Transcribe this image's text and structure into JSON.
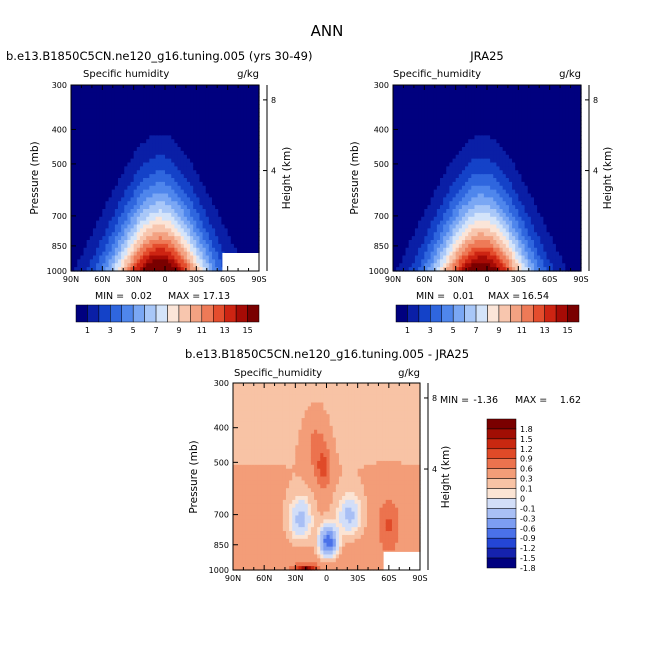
{
  "figure": {
    "title": "ANN"
  },
  "colormaps": {
    "field": [
      "#00007f",
      "#0a1fa6",
      "#1442c8",
      "#2f66de",
      "#4f86ec",
      "#7aa7f4",
      "#a8c7f8",
      "#d4e4fa",
      "#fbe5d8",
      "#f8c6ae",
      "#f3a282",
      "#ee7a57",
      "#e44d2d",
      "#cd2412",
      "#a60b05",
      "#7a0000"
    ],
    "diff": [
      "#00007f",
      "#1522ad",
      "#2446d5",
      "#4a71e9",
      "#7c9df2",
      "#a8bff5",
      "#d2def8",
      "#fbe4d4",
      "#f8c3a5",
      "#f39d78",
      "#ec734e",
      "#e04a28",
      "#c92810",
      "#a10e04",
      "#7a0000"
    ]
  },
  "chart_data": [
    {
      "type": "contour",
      "title": "b.e13.B1850C5CN.ne120_g16.tuning.005 (yrs 30-49)",
      "variable": "Specific humidity",
      "units": "g/kg",
      "ylabel": "Pressure (mb)",
      "ylabel_right": "Height (km)",
      "x_ticks": [
        "90N",
        "60N",
        "30N",
        "0",
        "30S",
        "60S",
        "90S"
      ],
      "y_ticks": [
        300,
        400,
        500,
        700,
        850,
        1000
      ],
      "height_ticks": [
        8,
        4
      ],
      "min_label": "MIN =",
      "min_value": "0.02",
      "max_label": "MAX =",
      "max_value": "17.13",
      "colorbar_labels": [
        "1",
        "3",
        "5",
        "7",
        "9",
        "11",
        "13",
        "15"
      ],
      "levels": [
        1,
        2,
        3,
        4,
        5,
        6,
        7,
        8,
        9,
        10,
        11,
        12,
        13,
        14,
        15
      ],
      "peak_lat": 5,
      "peak_value": 17.13
    },
    {
      "type": "contour",
      "title": "JRA25",
      "variable": "Specific_humidity",
      "units": "g/kg",
      "ylabel": "Pressure (mb)",
      "ylabel_right": "Height (km)",
      "x_ticks": [
        "90N",
        "60N",
        "30N",
        "0",
        "30S",
        "60S",
        "90S"
      ],
      "y_ticks": [
        300,
        400,
        500,
        700,
        850,
        1000
      ],
      "height_ticks": [
        8,
        4
      ],
      "min_label": "MIN =",
      "min_value": "0.01",
      "max_label": "MAX =",
      "max_value": "16.54",
      "colorbar_labels": [
        "1",
        "3",
        "5",
        "7",
        "9",
        "11",
        "13",
        "15"
      ],
      "levels": [
        1,
        2,
        3,
        4,
        5,
        6,
        7,
        8,
        9,
        10,
        11,
        12,
        13,
        14,
        15
      ],
      "peak_lat": 5,
      "peak_value": 16.54
    },
    {
      "type": "contour",
      "title": "b.e13.B1850C5CN.ne120_g16.tuning.005 - JRA25",
      "variable": "Specific_humidity",
      "units": "g/kg",
      "ylabel": "Pressure (mb)",
      "ylabel_right": "Height (km)",
      "x_ticks": [
        "90N",
        "60N",
        "30N",
        "0",
        "30S",
        "60S",
        "90S"
      ],
      "y_ticks": [
        300,
        400,
        500,
        700,
        850,
        1000
      ],
      "height_ticks": [
        8,
        4
      ],
      "min_label": "MIN =",
      "min_value": "-1.36",
      "max_label": "MAX =",
      "max_value": "1.62",
      "colorbar_labels": [
        "1.8",
        "1.5",
        "1.2",
        "0.9",
        "0.6",
        "0.3",
        "0.1",
        "0",
        "-0.1",
        "-0.3",
        "-0.6",
        "-0.9",
        "-1.2",
        "-1.5",
        "-1.8"
      ],
      "levels": [
        -1.8,
        -1.5,
        -1.2,
        -0.9,
        -0.6,
        -0.3,
        -0.1,
        0,
        0.1,
        0.3,
        0.6,
        0.9,
        1.2,
        1.5,
        1.8
      ]
    }
  ]
}
